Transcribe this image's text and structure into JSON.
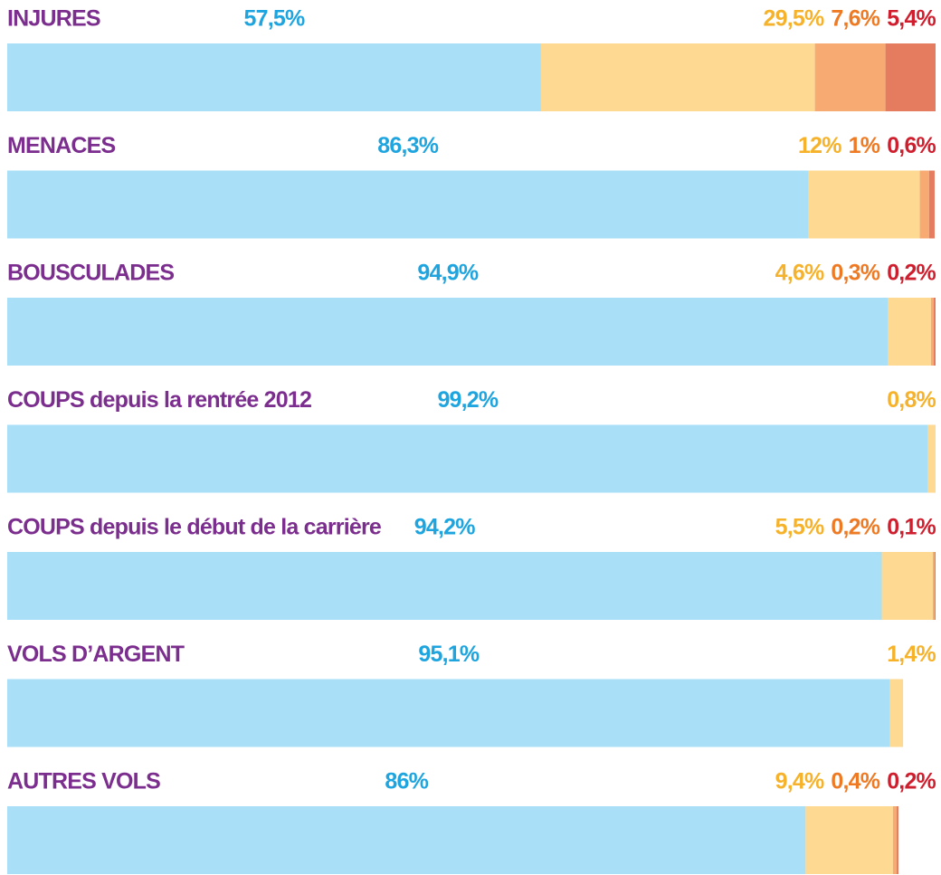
{
  "chart_data": {
    "type": "stacked-bar-horizontal",
    "categories": [
      "INJURES",
      "MENACES",
      "BOUSCULADES",
      "COUPS depuis la rentrée 2012",
      "COUPS depuis le début de la carrière",
      "VOLS D’ARGENT",
      "AUTRES VOLS"
    ],
    "xlim": [
      0,
      100
    ],
    "label_color": "#7b2e8e",
    "series": [
      {
        "color": "#aadff8",
        "label_color": "#1ea5df",
        "values": [
          57.5,
          86.3,
          94.9,
          99.2,
          94.2,
          95.1,
          86
        ],
        "value_labels": [
          "57,5%",
          "86,3%",
          "94,9%",
          "99,2%",
          "94,2%",
          "95,1%",
          "86%"
        ]
      },
      {
        "color": "#fdd992",
        "label_color": "#f5b22a",
        "values": [
          29.5,
          12,
          4.6,
          0.8,
          5.5,
          1.4,
          9.4
        ],
        "value_labels": [
          "29,5%",
          "12%",
          "4,6%",
          "0,8%",
          "5,5%",
          "1,4%",
          "9,4%"
        ]
      },
      {
        "color": "#f7aa72",
        "label_color": "#ee7a24",
        "values": [
          7.6,
          1,
          0.3,
          null,
          0.2,
          null,
          0.4
        ],
        "value_labels": [
          "7,6%",
          "1%",
          "0,3%",
          null,
          "0,2%",
          null,
          "0,4%"
        ]
      },
      {
        "color": "#e57c60",
        "label_color": "#cf1f2e",
        "values": [
          5.4,
          0.6,
          0.2,
          null,
          0.1,
          null,
          0.2
        ],
        "value_labels": [
          "5,4%",
          "0,6%",
          "0,2%",
          null,
          "0,1%",
          null,
          "0,2%"
        ]
      }
    ]
  }
}
